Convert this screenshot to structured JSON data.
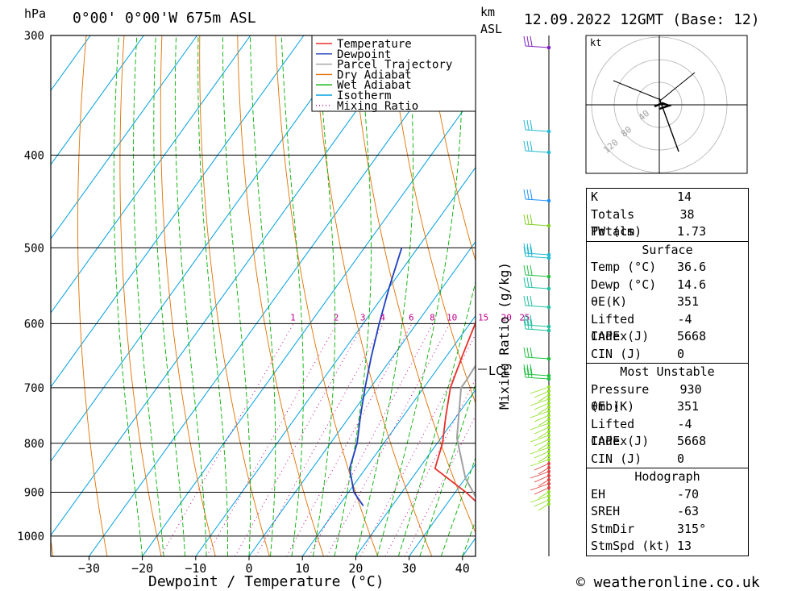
{
  "header": {
    "location": "0°00' 0°00'W 675m ASL",
    "datetime": "12.09.2022 12GMT (Base: 12)",
    "hpa_label": "hPa",
    "km_label": "km",
    "asl_label": "ASL",
    "kt_label": "kt",
    "lcl_label": "LCL",
    "mixing_ratio_label": "Mixing Ratio (g/kg)",
    "footer": "© weatheronline.co.uk"
  },
  "colors": {
    "temperature": "#e8302c",
    "dewpoint": "#1f3fbf",
    "parcel": "#a0a0a0",
    "dry_adiabat": "#e07000",
    "wet_adiabat": "#00b000",
    "isotherm": "#00a0e0",
    "mixing_ratio": "#c0008f"
  },
  "chart_data": {
    "type": "line",
    "xlabel": "Dewpoint / Temperature (°C)",
    "x_ticks": [
      -30,
      -20,
      -10,
      0,
      10,
      20,
      30,
      40
    ],
    "xlim": [
      -37,
      42
    ],
    "pressure_ticks": [
      300,
      400,
      500,
      600,
      700,
      800,
      900,
      1000
    ],
    "ylim": [
      300,
      1050
    ],
    "legend": [
      "Temperature",
      "Dewpoint",
      "Parcel Trajectory",
      "Dry Adiabat",
      "Wet Adiabat",
      "Isotherm",
      "Mixing Ratio"
    ],
    "legend_position": "top-right",
    "mixing_ratio_labels": [
      "1",
      "2",
      "3",
      "4",
      "6",
      "8",
      "10",
      "15",
      "20",
      "25"
    ],
    "series": [
      {
        "name": "Temperature",
        "points": [
          [
            36.6,
            930
          ],
          [
            32,
            900
          ],
          [
            23,
            850
          ],
          [
            21,
            800
          ],
          [
            18,
            750
          ],
          [
            15,
            700
          ],
          [
            13,
            650
          ],
          [
            11,
            600
          ],
          [
            8,
            550
          ],
          [
            6,
            500
          ]
        ]
      },
      {
        "name": "Dewpoint",
        "points": [
          [
            14.6,
            930
          ],
          [
            11,
            900
          ],
          [
            7,
            850
          ],
          [
            5,
            800
          ],
          [
            2,
            750
          ],
          [
            -1,
            700
          ],
          [
            -4,
            650
          ],
          [
            -7,
            600
          ],
          [
            -10,
            550
          ],
          [
            -13,
            500
          ]
        ]
      },
      {
        "name": "Parcel Trajectory",
        "points": [
          [
            36.6,
            930
          ],
          [
            30,
            870
          ],
          [
            23,
            790
          ],
          [
            17,
            700
          ],
          [
            17,
            690
          ],
          [
            16,
            600
          ],
          [
            16,
            500
          ],
          [
            15,
            450
          ],
          [
            15,
            400
          ],
          [
            14,
            350
          ]
        ]
      }
    ]
  },
  "hodograph": {
    "rings": [
      "40",
      "80",
      "120"
    ]
  },
  "indices": [
    {
      "label": "K",
      "value": "14"
    },
    {
      "label": "Totals Totals",
      "value": "38"
    },
    {
      "label": "PW (cm)",
      "value": "1.73"
    }
  ],
  "surface": {
    "title": "Surface",
    "rows": [
      {
        "label": "Temp (°C)",
        "value": "36.6"
      },
      {
        "label": "Dewp (°C)",
        "value": "14.6"
      },
      {
        "label": "θE(K)",
        "value": "351"
      },
      {
        "label": "Lifted Index",
        "value": "-4"
      },
      {
        "label": "CAPE (J)",
        "value": "5668"
      },
      {
        "label": "CIN (J)",
        "value": "0"
      }
    ]
  },
  "most_unstable": {
    "title": "Most Unstable",
    "rows": [
      {
        "label": "Pressure (mb)",
        "value": "930"
      },
      {
        "label": "θE (K)",
        "value": "351"
      },
      {
        "label": "Lifted Index",
        "value": "-4"
      },
      {
        "label": "CAPE (J)",
        "value": "5668"
      },
      {
        "label": "CIN (J)",
        "value": "0"
      }
    ]
  },
  "hodograph_table": {
    "title": "Hodograph",
    "rows": [
      {
        "label": "EH",
        "value": "-70"
      },
      {
        "label": "SREH",
        "value": "-63"
      },
      {
        "label": "StmDir",
        "value": "315°"
      },
      {
        "label": "StmSpd (kt)",
        "value": "13"
      }
    ]
  }
}
